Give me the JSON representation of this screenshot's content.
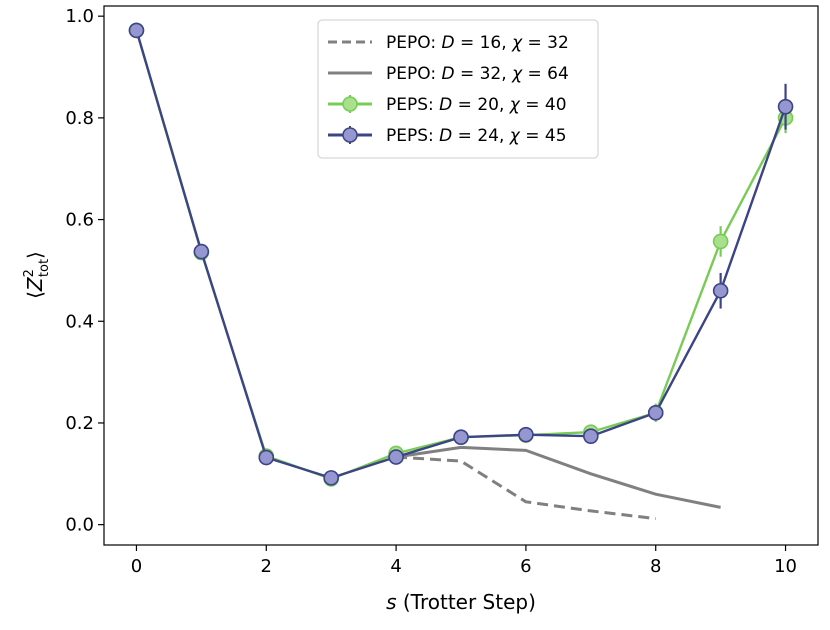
{
  "chart_data": {
    "type": "line",
    "xlabel_var": "s",
    "xlabel_rest": " (Trotter Step)",
    "ylabel": "⟨Z²tot⟩",
    "xlim": [
      -0.5,
      10.5
    ],
    "ylim": [
      -0.04,
      1.02
    ],
    "xticks": [
      0,
      2,
      4,
      6,
      8,
      10
    ],
    "xtick_labels": [
      "0",
      "2",
      "4",
      "6",
      "8",
      "10"
    ],
    "yticks": [
      0.0,
      0.2,
      0.4,
      0.6,
      0.8,
      1.0
    ],
    "ytick_labels": [
      "0.0",
      "0.2",
      "0.4",
      "0.6",
      "0.8",
      "1.0"
    ],
    "legend_position": "top-center",
    "series": [
      {
        "name": "PEPO: D = 16, χ = 32",
        "label_prefix": "PEPO: ",
        "label_D": "16",
        "label_chi": "32",
        "style": "dashed",
        "color": "#808080",
        "markers": false,
        "x": [
          4,
          5,
          6,
          7,
          8
        ],
        "y": [
          0.133,
          0.125,
          0.045,
          0.027,
          0.012
        ]
      },
      {
        "name": "PEPO: D = 32, χ = 64",
        "label_prefix": "PEPO: ",
        "label_D": "32",
        "label_chi": "64",
        "style": "solid",
        "color": "#808080",
        "markers": false,
        "x": [
          4,
          5,
          6,
          7,
          8,
          9
        ],
        "y": [
          0.133,
          0.152,
          0.146,
          0.1,
          0.06,
          0.034
        ]
      },
      {
        "name": "PEPS: D = 20, χ = 40",
        "label_prefix": "PEPS: ",
        "label_D": "20",
        "label_chi": "40",
        "style": "solid",
        "color": "#77cc55",
        "marker_fill": "#a8e08c",
        "markers": true,
        "x": [
          0,
          1,
          2,
          3,
          4,
          5,
          6,
          7,
          8,
          9,
          10
        ],
        "y": [
          0.972,
          0.535,
          0.135,
          0.09,
          0.14,
          0.172,
          0.176,
          0.182,
          0.22,
          0.557,
          0.8
        ],
        "yerr": [
          0.004,
          0.005,
          0.005,
          0.004,
          0.006,
          0.007,
          0.007,
          0.008,
          0.018,
          0.03,
          0.03
        ]
      },
      {
        "name": "PEPS: D = 24, χ = 45",
        "label_prefix": "PEPS: ",
        "label_D": "24",
        "label_chi": "45",
        "style": "solid",
        "color": "#3c4485",
        "marker_fill": "#9696d0",
        "markers": true,
        "x": [
          0,
          1,
          2,
          3,
          4,
          5,
          6,
          7,
          8,
          9,
          10
        ],
        "y": [
          0.972,
          0.537,
          0.132,
          0.092,
          0.133,
          0.172,
          0.177,
          0.174,
          0.22,
          0.46,
          0.822
        ],
        "yerr": [
          0.004,
          0.005,
          0.005,
          0.004,
          0.005,
          0.006,
          0.006,
          0.007,
          0.01,
          0.035,
          0.045
        ]
      }
    ]
  }
}
